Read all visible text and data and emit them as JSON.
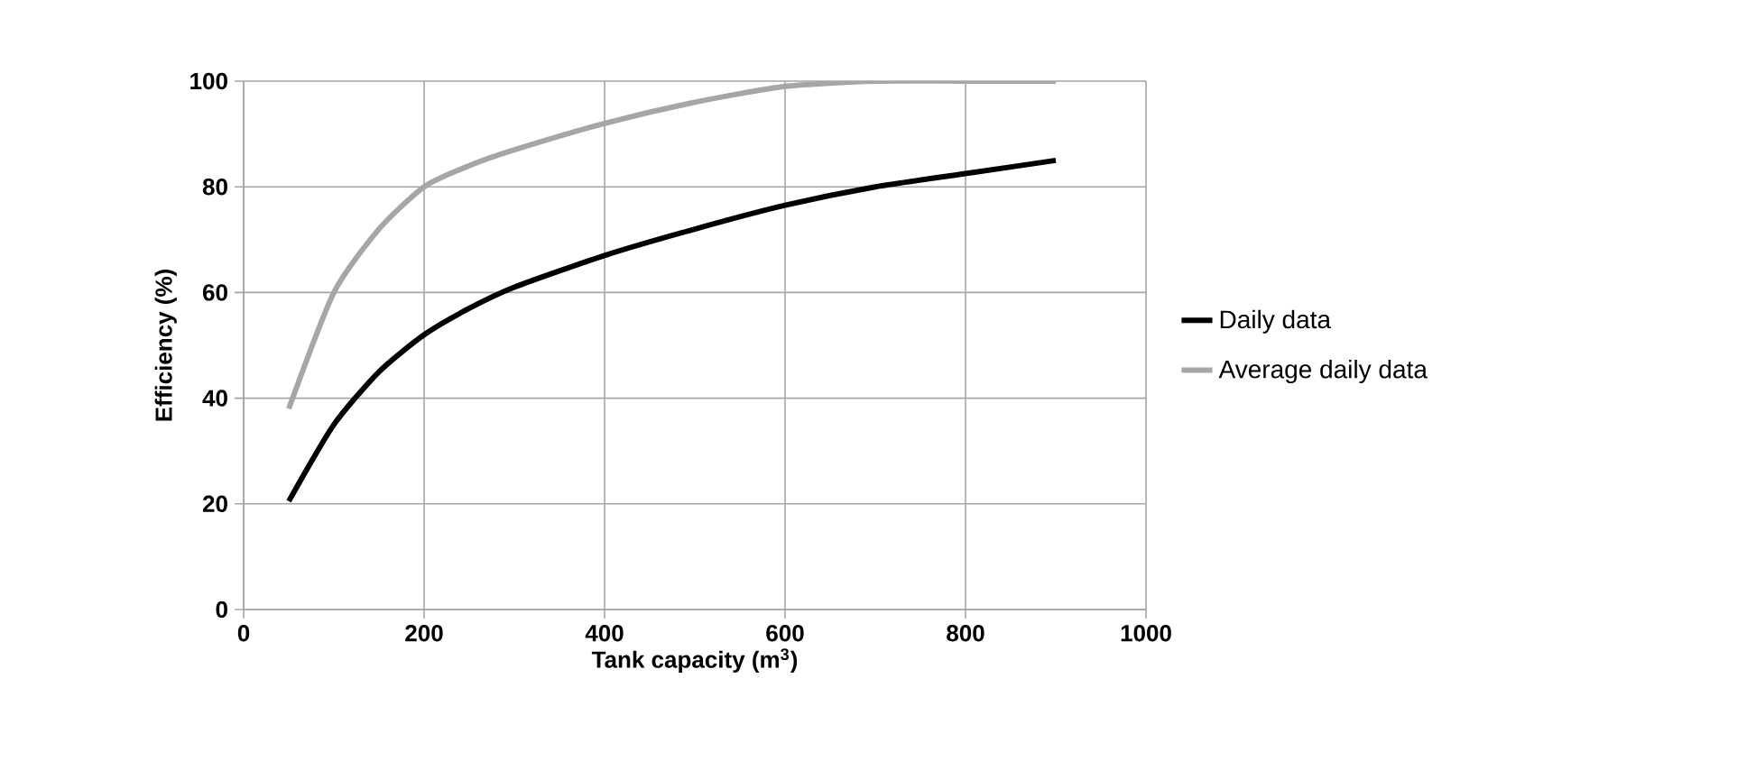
{
  "chart_data": {
    "type": "line",
    "xlabel": "Tank capacity (m$^{3}$)",
    "ylabel": "Efficiency (%)",
    "x": [
      50,
      100,
      150,
      200,
      250,
      300,
      400,
      500,
      600,
      700,
      800,
      900
    ],
    "series": [
      {
        "name": "Daily data",
        "color": "#000000",
        "values": [
          20.5,
          35,
          45,
          52,
          57,
          61,
          67,
          72,
          76.5,
          80,
          82.5,
          85
        ]
      },
      {
        "name": "Average daily data",
        "color": "#a6a6a6",
        "values": [
          38,
          60,
          72,
          80,
          84,
          87,
          92,
          96,
          99,
          100,
          100,
          100
        ]
      }
    ],
    "xlim": [
      0,
      1000
    ],
    "ylim": [
      0,
      100
    ],
    "xticks": [
      0,
      200,
      400,
      600,
      800,
      1000
    ],
    "yticks": [
      0,
      20,
      40,
      60,
      80,
      100
    ],
    "grid": true,
    "legend": "right",
    "marker": "none",
    "line_style": "solid"
  }
}
